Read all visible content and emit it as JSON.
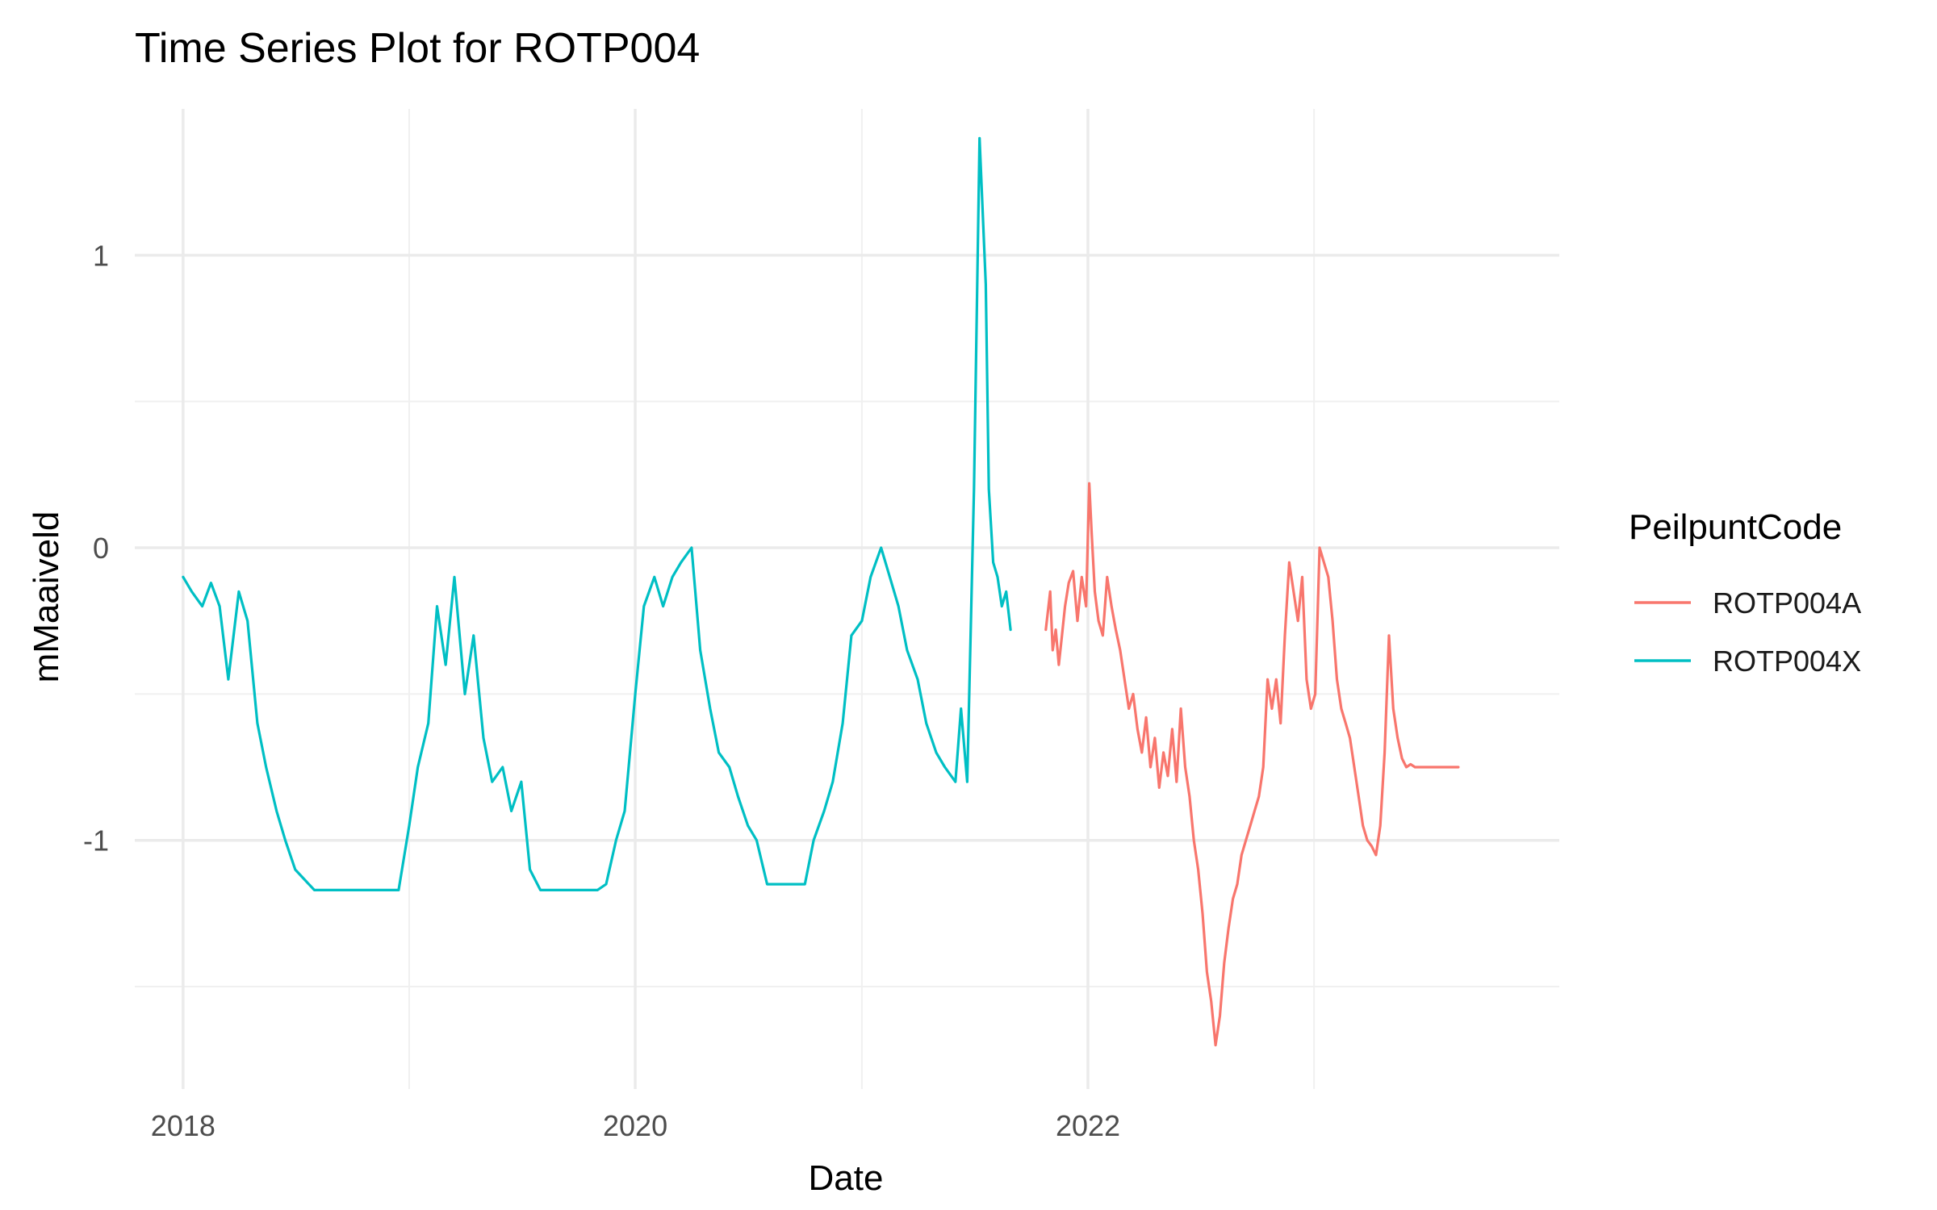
{
  "chart_data": {
    "type": "line",
    "title": "Time Series Plot for ROTP004",
    "xlabel": "Date",
    "ylabel": "mMaaiveld",
    "x_ticks": [
      "2018",
      "2020",
      "2022"
    ],
    "y_ticks": [
      "-1",
      "0",
      "1"
    ],
    "xlim": [
      "2017-10-15",
      "2024-02-01"
    ],
    "ylim": [
      -1.85,
      1.5
    ],
    "grid": true,
    "legend": {
      "title": "PeilpuntCode",
      "position": "right"
    },
    "series": [
      {
        "name": "ROTP004A",
        "color": "#F8766D",
        "x": [
          "2021-10-25",
          "2021-11-01",
          "2021-11-05",
          "2021-11-10",
          "2021-11-15",
          "2021-11-20",
          "2021-11-25",
          "2021-12-01",
          "2021-12-08",
          "2021-12-15",
          "2021-12-22",
          "2021-12-29",
          "2022-01-03",
          "2022-01-07",
          "2022-01-12",
          "2022-01-18",
          "2022-01-25",
          "2022-02-01",
          "2022-02-08",
          "2022-02-15",
          "2022-02-22",
          "2022-03-01",
          "2022-03-08",
          "2022-03-15",
          "2022-03-22",
          "2022-03-29",
          "2022-04-05",
          "2022-04-12",
          "2022-04-19",
          "2022-04-26",
          "2022-05-03",
          "2022-05-10",
          "2022-05-17",
          "2022-05-24",
          "2022-05-31",
          "2022-06-07",
          "2022-06-14",
          "2022-06-21",
          "2022-06-28",
          "2022-07-05",
          "2022-07-12",
          "2022-07-19",
          "2022-07-26",
          "2022-08-02",
          "2022-08-09",
          "2022-08-16",
          "2022-08-23",
          "2022-08-30",
          "2022-09-06",
          "2022-09-13",
          "2022-09-20",
          "2022-09-27",
          "2022-10-04",
          "2022-10-11",
          "2022-10-18",
          "2022-10-25",
          "2022-11-01",
          "2022-11-08",
          "2022-11-15",
          "2022-11-22",
          "2022-11-29",
          "2022-12-06",
          "2022-12-13",
          "2022-12-20",
          "2022-12-27",
          "2023-01-03",
          "2023-01-10",
          "2023-01-17",
          "2023-01-24",
          "2023-01-31",
          "2023-02-07",
          "2023-02-14",
          "2023-02-21",
          "2023-02-28",
          "2023-03-07",
          "2023-03-14",
          "2023-03-21",
          "2023-03-28",
          "2023-04-04",
          "2023-04-11",
          "2023-04-18",
          "2023-04-25",
          "2023-05-02",
          "2023-05-09",
          "2023-05-16",
          "2023-05-23",
          "2023-05-30",
          "2023-06-06",
          "2023-06-13",
          "2023-06-20",
          "2023-06-27",
          "2023-07-04",
          "2023-07-11",
          "2023-07-18",
          "2023-07-25",
          "2023-08-01",
          "2023-08-08",
          "2023-08-15",
          "2023-08-22"
        ],
        "y": [
          -0.28,
          -0.15,
          -0.35,
          -0.28,
          -0.4,
          -0.3,
          -0.2,
          -0.12,
          -0.08,
          -0.25,
          -0.1,
          -0.2,
          0.22,
          0.05,
          -0.15,
          -0.25,
          -0.3,
          -0.1,
          -0.2,
          -0.28,
          -0.35,
          -0.45,
          -0.55,
          -0.5,
          -0.62,
          -0.7,
          -0.58,
          -0.75,
          -0.65,
          -0.82,
          -0.7,
          -0.78,
          -0.62,
          -0.8,
          -0.55,
          -0.75,
          -0.85,
          -1.0,
          -1.1,
          -1.25,
          -1.45,
          -1.55,
          -1.7,
          -1.6,
          -1.42,
          -1.3,
          -1.2,
          -1.15,
          -1.05,
          -1.0,
          -0.95,
          -0.9,
          -0.85,
          -0.75,
          -0.45,
          -0.55,
          -0.45,
          -0.6,
          -0.3,
          -0.05,
          -0.15,
          -0.25,
          -0.1,
          -0.45,
          -0.55,
          -0.5,
          0.0,
          -0.05,
          -0.1,
          -0.25,
          -0.45,
          -0.55,
          -0.6,
          -0.65,
          -0.75,
          -0.85,
          -0.95,
          -1.0,
          -1.02,
          -1.05,
          -0.95,
          -0.7,
          -0.3,
          -0.55,
          -0.65,
          -0.72,
          -0.75,
          -0.74,
          -0.75,
          -0.75,
          -0.75,
          -0.75,
          -0.75,
          -0.75,
          -0.75,
          -0.75,
          -0.75,
          -0.75,
          -0.75
        ]
      },
      {
        "name": "ROTP004X",
        "color": "#00BFC4",
        "x": [
          "2018-01-01",
          "2018-01-15",
          "2018-02-01",
          "2018-02-15",
          "2018-03-01",
          "2018-03-15",
          "2018-04-01",
          "2018-04-15",
          "2018-05-01",
          "2018-05-15",
          "2018-06-01",
          "2018-06-15",
          "2018-07-01",
          "2018-08-01",
          "2018-09-01",
          "2018-10-01",
          "2018-11-01",
          "2018-12-01",
          "2018-12-15",
          "2019-01-01",
          "2019-01-15",
          "2019-02-01",
          "2019-02-15",
          "2019-03-01",
          "2019-03-15",
          "2019-04-01",
          "2019-04-15",
          "2019-05-01",
          "2019-05-15",
          "2019-06-01",
          "2019-06-15",
          "2019-07-01",
          "2019-07-15",
          "2019-08-01",
          "2019-09-01",
          "2019-10-01",
          "2019-11-01",
          "2019-11-15",
          "2019-12-01",
          "2019-12-15",
          "2020-01-01",
          "2020-01-15",
          "2020-02-01",
          "2020-02-15",
          "2020-03-01",
          "2020-03-15",
          "2020-04-01",
          "2020-04-15",
          "2020-05-01",
          "2020-05-15",
          "2020-06-01",
          "2020-06-15",
          "2020-07-01",
          "2020-07-15",
          "2020-08-01",
          "2020-09-01",
          "2020-10-01",
          "2020-10-15",
          "2020-11-01",
          "2020-11-15",
          "2020-12-01",
          "2020-12-15",
          "2021-01-01",
          "2021-01-15",
          "2021-02-01",
          "2021-02-15",
          "2021-03-01",
          "2021-03-15",
          "2021-04-01",
          "2021-04-15",
          "2021-05-01",
          "2021-05-15",
          "2021-06-01",
          "2021-06-10",
          "2021-06-20",
          "2021-07-01",
          "2021-07-10",
          "2021-07-20",
          "2021-07-25",
          "2021-08-01",
          "2021-08-08",
          "2021-08-15",
          "2021-08-22",
          "2021-08-29"
        ],
        "y": [
          -0.1,
          -0.15,
          -0.2,
          -0.12,
          -0.2,
          -0.45,
          -0.15,
          -0.25,
          -0.6,
          -0.75,
          -0.9,
          -1.0,
          -1.1,
          -1.17,
          -1.17,
          -1.17,
          -1.17,
          -1.17,
          -1.17,
          -0.95,
          -0.75,
          -0.6,
          -0.2,
          -0.4,
          -0.1,
          -0.5,
          -0.3,
          -0.65,
          -0.8,
          -0.75,
          -0.9,
          -0.8,
          -1.1,
          -1.17,
          -1.17,
          -1.17,
          -1.17,
          -1.15,
          -1.0,
          -0.9,
          -0.5,
          -0.2,
          -0.1,
          -0.2,
          -0.1,
          -0.05,
          0.0,
          -0.35,
          -0.55,
          -0.7,
          -0.75,
          -0.85,
          -0.95,
          -1.0,
          -1.15,
          -1.15,
          -1.15,
          -1.0,
          -0.9,
          -0.8,
          -0.6,
          -0.3,
          -0.25,
          -0.1,
          0.0,
          -0.1,
          -0.2,
          -0.35,
          -0.45,
          -0.6,
          -0.7,
          -0.75,
          -0.8,
          -0.55,
          -0.8,
          0.2,
          1.4,
          0.9,
          0.2,
          -0.05,
          -0.1,
          -0.2,
          -0.15,
          -0.28
        ]
      }
    ]
  }
}
